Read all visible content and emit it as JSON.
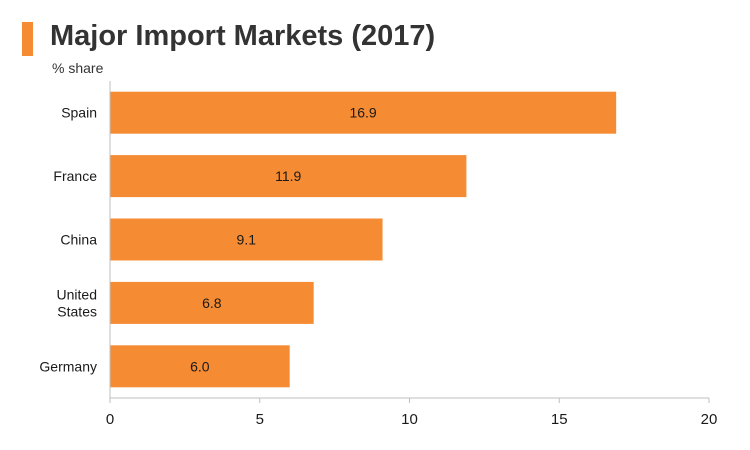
{
  "title": "Major Import Markets (2017)",
  "subtitle": "% share",
  "colors": {
    "accent": "#f58b32",
    "bar": "#f58b32"
  },
  "chart_data": {
    "type": "bar",
    "orientation": "horizontal",
    "title": "Major Import Markets (2017)",
    "ylabel": "% share",
    "categories": [
      "Spain",
      "France",
      "China",
      "United States",
      "Germany"
    ],
    "category_lines": [
      [
        "Spain"
      ],
      [
        "France"
      ],
      [
        "China"
      ],
      [
        "United",
        "States"
      ],
      [
        "Germany"
      ]
    ],
    "values": [
      16.9,
      11.9,
      9.1,
      6.8,
      6.0
    ],
    "value_labels": [
      "16.9",
      "11.9",
      "9.1",
      "6.8",
      "6.0"
    ],
    "xlim": [
      0,
      20
    ],
    "xticks": [
      0,
      5,
      10,
      15,
      20
    ],
    "grid": false
  }
}
